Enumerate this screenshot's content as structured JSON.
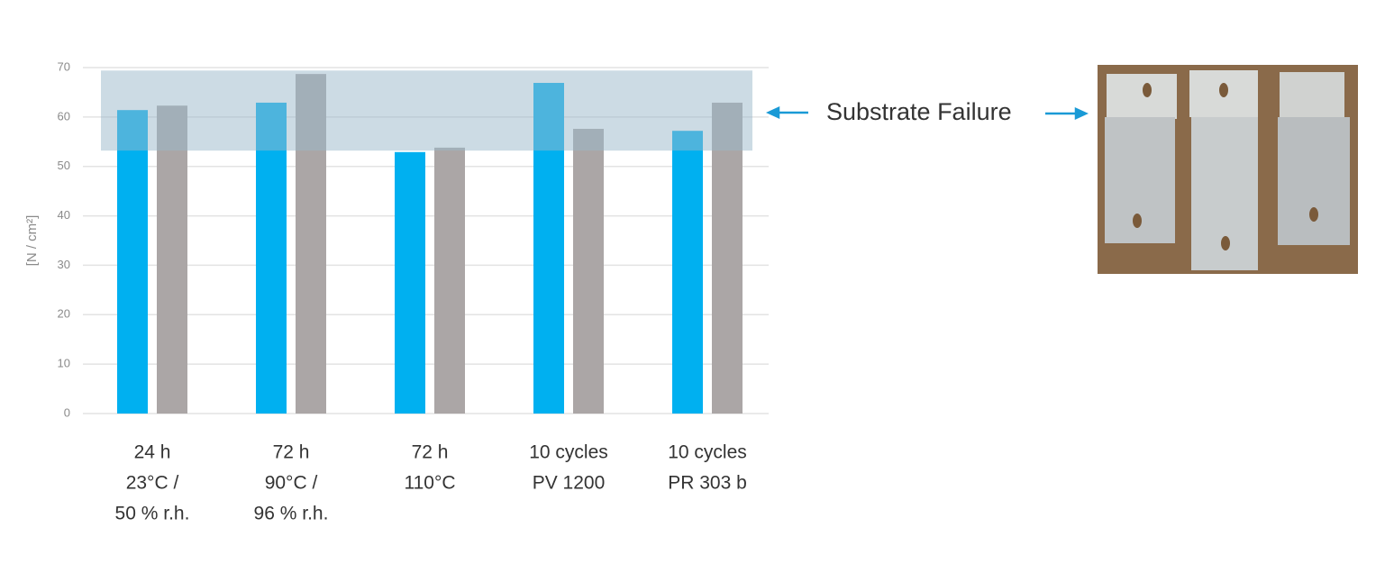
{
  "chart_data": {
    "type": "bar",
    "y_label": "[N / cm²]",
    "categories": [
      [
        "24 h",
        "23°C /",
        "50 % r.h."
      ],
      [
        "72 h",
        "90°C /",
        "96 % r.h."
      ],
      [
        "72 h",
        "110°C"
      ],
      [
        "10 cycles",
        "PV 1200"
      ],
      [
        "10 cycles",
        "PR 303 b"
      ]
    ],
    "series": [
      {
        "color": "#00b0f0",
        "values": [
          61.4,
          62.9,
          52.9,
          66.9,
          57.2
        ]
      },
      {
        "color": "#aba6a6",
        "values": [
          62.3,
          68.7,
          53.8,
          57.6,
          62.9
        ]
      }
    ],
    "ylim": [
      0,
      70
    ],
    "yticks": [
      0,
      10,
      20,
      30,
      40,
      50,
      60,
      70
    ],
    "grid": true,
    "band": {
      "range": [
        53.2,
        69.4
      ],
      "label": "Substrate Failure",
      "color": "#9ab7c9"
    }
  }
}
